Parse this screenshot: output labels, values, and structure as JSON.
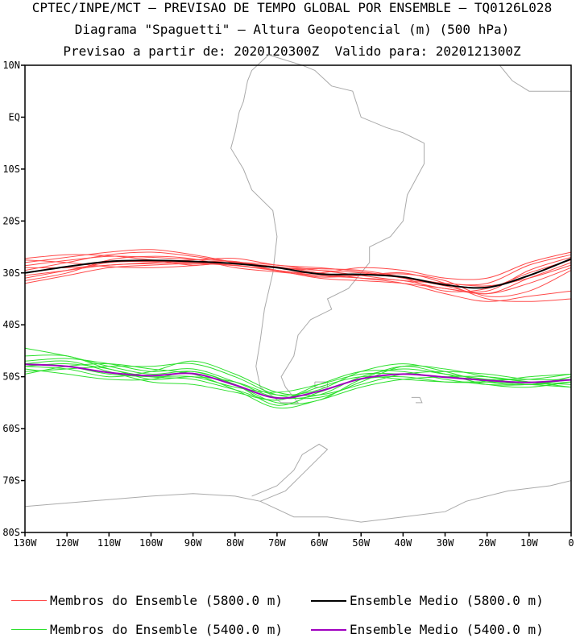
{
  "title_lines": [
    "CPTEC/INPE/MCT – PREVISAO DE TEMPO GLOBAL POR ENSEMBLE – TQ0126L028",
    "Diagrama \"Spaguetti\" – Altura Geopotencial (m) (500 hPa)",
    "Previsao a partir de: 2020120300Z  Valido para: 2020121300Z"
  ],
  "legend": [
    {
      "label": "Membros do Ensemble (5800.0 m)",
      "color": "#ff4a4a"
    },
    {
      "label": "Ensemble Medio (5800.0 m)",
      "color": "#000000"
    },
    {
      "label": "Membros do Ensemble (5400.0 m)",
      "color": "#2ee02e"
    },
    {
      "label": "Ensemble Medio (5400.0 m)",
      "color": "#a000c0"
    }
  ],
  "chart_data": {
    "type": "line",
    "title": "Diagrama \"Spaguetti\" – Altura Geopotencial (m) (500 hPa)",
    "xlabel": "",
    "ylabel": "",
    "xlim": [
      -130,
      0
    ],
    "ylim": [
      -80,
      10
    ],
    "x_ticks": [
      -130,
      -120,
      -110,
      -100,
      -90,
      -80,
      -70,
      -60,
      -50,
      -40,
      -30,
      -20,
      -10,
      0
    ],
    "x_tick_labels": [
      "130W",
      "120W",
      "110W",
      "100W",
      "90W",
      "80W",
      "70W",
      "60W",
      "50W",
      "40W",
      "30W",
      "20W",
      "10W",
      "0"
    ],
    "y_ticks": [
      10,
      0,
      -10,
      -20,
      -30,
      -40,
      -50,
      -60,
      -70,
      -80
    ],
    "y_tick_labels": [
      "10N",
      "EQ",
      "10S",
      "20S",
      "30S",
      "40S",
      "50S",
      "60S",
      "70S",
      "80S"
    ],
    "x": [
      -130,
      -120,
      -110,
      -100,
      -90,
      -80,
      -70,
      -60,
      -50,
      -40,
      -30,
      -20,
      -10,
      0
    ],
    "series": [
      {
        "name": "Ensemble Medio (5800.0 m)",
        "color": "#000000",
        "width": 2,
        "values": [
          -30.0,
          -28.8,
          -27.8,
          -27.6,
          -27.8,
          -28.2,
          -29.0,
          -30.2,
          -30.3,
          -30.8,
          -32.3,
          -32.8,
          -30.5,
          -27.3
        ]
      },
      {
        "name": "Ensemble Medio (5400.0 m)",
        "color": "#a000c0",
        "width": 2,
        "values": [
          -47.6,
          -48.0,
          -49.2,
          -49.8,
          -49.4,
          -51.6,
          -54.1,
          -52.8,
          -50.4,
          -49.5,
          -50.1,
          -50.7,
          -51.1,
          -50.6
        ]
      },
      {
        "name": "5800 m member 1",
        "color": "#ff4a4a",
        "width": 1,
        "values": [
          -28.6,
          -27.6,
          -26.8,
          -27.0,
          -27.4,
          -27.8,
          -29.0,
          -29.5,
          -30.0,
          -31.0,
          -32.5,
          -34.0,
          -31.0,
          -28.0
        ]
      },
      {
        "name": "5800 m member 2",
        "color": "#ff4a4a",
        "width": 1,
        "values": [
          -31.0,
          -29.5,
          -28.0,
          -27.8,
          -28.0,
          -28.5,
          -29.5,
          -30.5,
          -31.0,
          -31.5,
          -33.0,
          -33.5,
          -29.5,
          -27.0
        ]
      },
      {
        "name": "5800 m member 3",
        "color": "#ff4a4a",
        "width": 1,
        "values": [
          -27.2,
          -26.5,
          -26.7,
          -27.5,
          -28.5,
          -28.0,
          -29.0,
          -29.2,
          -29.5,
          -30.8,
          -32.0,
          -32.0,
          -28.5,
          -26.5
        ]
      },
      {
        "name": "5800 m member 4",
        "color": "#ff4a4a",
        "width": 1,
        "values": [
          -32.0,
          -30.5,
          -29.0,
          -28.5,
          -28.2,
          -28.6,
          -29.6,
          -30.8,
          -30.5,
          -30.2,
          -31.5,
          -34.5,
          -33.5,
          -29.5
        ]
      },
      {
        "name": "5800 m member 5",
        "color": "#ff4a4a",
        "width": 1,
        "values": [
          -29.5,
          -28.0,
          -26.5,
          -26.0,
          -26.8,
          -28.0,
          -28.8,
          -30.0,
          -31.0,
          -32.0,
          -34.0,
          -35.5,
          -34.5,
          -33.5
        ]
      },
      {
        "name": "5800 m member 6",
        "color": "#ff4a4a",
        "width": 1,
        "values": [
          -30.5,
          -29.5,
          -28.5,
          -28.2,
          -28.0,
          -27.8,
          -29.5,
          -30.0,
          -29.0,
          -29.5,
          -31.0,
          -31.0,
          -28.0,
          -26.0
        ]
      },
      {
        "name": "5800 m member 7",
        "color": "#ff4a4a",
        "width": 1,
        "values": [
          -28.0,
          -27.0,
          -26.0,
          -25.5,
          -26.5,
          -28.0,
          -29.5,
          -31.0,
          -31.5,
          -32.0,
          -33.0,
          -34.0,
          -32.0,
          -29.0
        ]
      },
      {
        "name": "5800 m member 8",
        "color": "#ff4a4a",
        "width": 1,
        "values": [
          -29.0,
          -29.0,
          -28.5,
          -28.0,
          -27.5,
          -27.2,
          -28.5,
          -29.0,
          -29.8,
          -31.0,
          -33.5,
          -33.0,
          -30.0,
          -27.5
        ]
      },
      {
        "name": "5800 m member 9",
        "color": "#ff4a4a",
        "width": 1,
        "values": [
          -31.5,
          -30.0,
          -27.5,
          -26.8,
          -27.3,
          -29.0,
          -29.8,
          -30.5,
          -30.5,
          -30.0,
          -32.0,
          -35.0,
          -35.5,
          -35.0
        ]
      },
      {
        "name": "5800 m member 10",
        "color": "#ff4a4a",
        "width": 1,
        "values": [
          -27.5,
          -28.0,
          -28.8,
          -29.0,
          -28.6,
          -28.0,
          -28.5,
          -29.5,
          -30.5,
          -31.5,
          -32.0,
          -32.5,
          -31.0,
          -28.5
        ]
      },
      {
        "name": "5400 m member 1",
        "color": "#2ee02e",
        "width": 1,
        "values": [
          -47.0,
          -46.5,
          -47.5,
          -49.0,
          -48.5,
          -51.0,
          -54.0,
          -53.5,
          -50.0,
          -48.5,
          -49.5,
          -50.5,
          -51.5,
          -51.0
        ]
      },
      {
        "name": "5400 m member 2",
        "color": "#2ee02e",
        "width": 1,
        "values": [
          -48.5,
          -49.5,
          -50.5,
          -50.5,
          -49.0,
          -51.5,
          -55.5,
          -53.0,
          -50.5,
          -50.0,
          -51.0,
          -51.0,
          -50.0,
          -49.5
        ]
      },
      {
        "name": "5400 m member 3",
        "color": "#2ee02e",
        "width": 1,
        "values": [
          -46.0,
          -46.0,
          -48.5,
          -50.0,
          -50.5,
          -52.5,
          -54.5,
          -51.5,
          -49.0,
          -49.0,
          -50.5,
          -51.5,
          -51.5,
          -50.5
        ]
      },
      {
        "name": "5400 m member 4",
        "color": "#2ee02e",
        "width": 1,
        "values": [
          -49.0,
          -48.5,
          -48.0,
          -48.0,
          -47.5,
          -50.0,
          -53.5,
          -54.0,
          -51.0,
          -48.0,
          -48.5,
          -50.0,
          -51.0,
          -51.5
        ]
      },
      {
        "name": "5400 m member 5",
        "color": "#2ee02e",
        "width": 1,
        "values": [
          -47.5,
          -47.0,
          -49.0,
          -51.0,
          -51.5,
          -53.0,
          -54.5,
          -52.0,
          -50.0,
          -50.5,
          -51.0,
          -51.0,
          -51.5,
          -52.0
        ]
      },
      {
        "name": "5400 m member 6",
        "color": "#2ee02e",
        "width": 1,
        "values": [
          -48.0,
          -48.5,
          -50.0,
          -49.0,
          -47.0,
          -49.5,
          -53.0,
          -53.5,
          -51.5,
          -49.5,
          -49.0,
          -49.5,
          -50.5,
          -50.5
        ]
      },
      {
        "name": "5400 m member 7",
        "color": "#2ee02e",
        "width": 1,
        "values": [
          -44.5,
          -46.0,
          -48.0,
          -49.5,
          -49.0,
          -51.5,
          -55.0,
          -54.5,
          -50.5,
          -48.0,
          -49.5,
          -51.5,
          -52.0,
          -51.0
        ]
      },
      {
        "name": "5400 m member 8",
        "color": "#2ee02e",
        "width": 1,
        "values": [
          -47.5,
          -48.0,
          -49.5,
          -50.0,
          -50.0,
          -52.0,
          -53.0,
          -51.5,
          -49.5,
          -49.5,
          -50.0,
          -50.5,
          -50.5,
          -49.5
        ]
      },
      {
        "name": "5400 m member 9",
        "color": "#2ee02e",
        "width": 1,
        "values": [
          -49.5,
          -48.0,
          -47.5,
          -48.5,
          -49.5,
          -52.5,
          -56.0,
          -54.5,
          -52.0,
          -50.5,
          -50.0,
          -50.0,
          -51.0,
          -52.0
        ]
      },
      {
        "name": "5400 m member 10",
        "color": "#2ee02e",
        "width": 1,
        "values": [
          -48.0,
          -47.5,
          -48.5,
          -50.5,
          -50.0,
          -51.0,
          -53.5,
          -52.5,
          -49.0,
          -47.5,
          -49.0,
          -51.0,
          -51.5,
          -50.0
        ]
      }
    ]
  }
}
